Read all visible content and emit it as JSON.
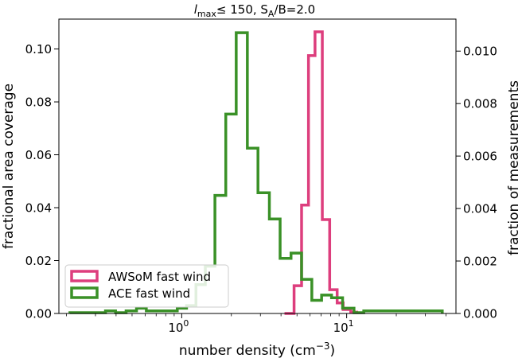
{
  "chart_data": {
    "type": "histogram",
    "title": {
      "main": "l",
      "sub": "max",
      "mid": "≤ 150, S",
      "sub2": "A",
      "end": "/B=2.0"
    },
    "xlabel": {
      "main": "number density (cm",
      "sup": "−3",
      "end": ")"
    },
    "ylabel_left": "fractional area coverage",
    "ylabel_right": "fraction of measurements",
    "x_scale": "log",
    "xlim": [
      0.18,
      46
    ],
    "ylim_left": [
      0,
      0.1113
    ],
    "ylim_right": [
      0,
      0.01122
    ],
    "x_major_ticks": [
      {
        "value": 1,
        "base": "10",
        "exp": "0"
      },
      {
        "value": 10,
        "base": "10",
        "exp": "1"
      }
    ],
    "yticks_left": [
      {
        "value": 0.0,
        "label": "0.00"
      },
      {
        "value": 0.02,
        "label": "0.02"
      },
      {
        "value": 0.04,
        "label": "0.04"
      },
      {
        "value": 0.06,
        "label": "0.06"
      },
      {
        "value": 0.08,
        "label": "0.08"
      },
      {
        "value": 0.1,
        "label": "0.10"
      }
    ],
    "yticks_right": [
      {
        "value": 0.0,
        "label": "0.000"
      },
      {
        "value": 0.002,
        "label": "0.002"
      },
      {
        "value": 0.004,
        "label": "0.004"
      },
      {
        "value": 0.006,
        "label": "0.006"
      },
      {
        "value": 0.008,
        "label": "0.008"
      },
      {
        "value": 0.01,
        "label": "0.010"
      }
    ],
    "legend_position": "lower-left",
    "series": [
      {
        "name": "AWSoM fast wind",
        "color": "#dd3e7d",
        "axis": "left",
        "bin_edges": [
          4.2,
          4.8,
          5.33,
          5.87,
          6.43,
          7.12,
          7.89,
          8.76,
          9.52,
          10.59,
          11.51
        ],
        "values": [
          0.0,
          0.0105,
          0.041,
          0.0975,
          0.1065,
          0.0355,
          0.009,
          0.004,
          0.0015,
          0.0005
        ]
      },
      {
        "name": "ACE fast wind",
        "color": "#3a9127",
        "axis": "right",
        "bin_edges": [
          0.21,
          0.266,
          0.303,
          0.345,
          0.397,
          0.46,
          0.532,
          0.61,
          0.705,
          0.81,
          0.94,
          1.07,
          1.22,
          1.39,
          1.59,
          1.85,
          2.14,
          2.5,
          2.9,
          3.4,
          3.95,
          4.6,
          5.33,
          6.15,
          7.05,
          8.1,
          9.45,
          11.08,
          12.7,
          18.1,
          38.0
        ],
        "values": [
          3e-05,
          3e-05,
          3e-05,
          0.0001,
          3e-05,
          0.0001,
          0.0002,
          0.0001,
          0.0001,
          0.0001,
          0.0002,
          0.0003,
          0.0011,
          0.0018,
          0.0045,
          0.0076,
          0.0107,
          0.0063,
          0.0046,
          0.0036,
          0.0021,
          0.0023,
          0.0013,
          0.0005,
          0.0007,
          0.0006,
          0.0002,
          3e-05,
          0.0001,
          0.0001
        ]
      }
    ]
  }
}
